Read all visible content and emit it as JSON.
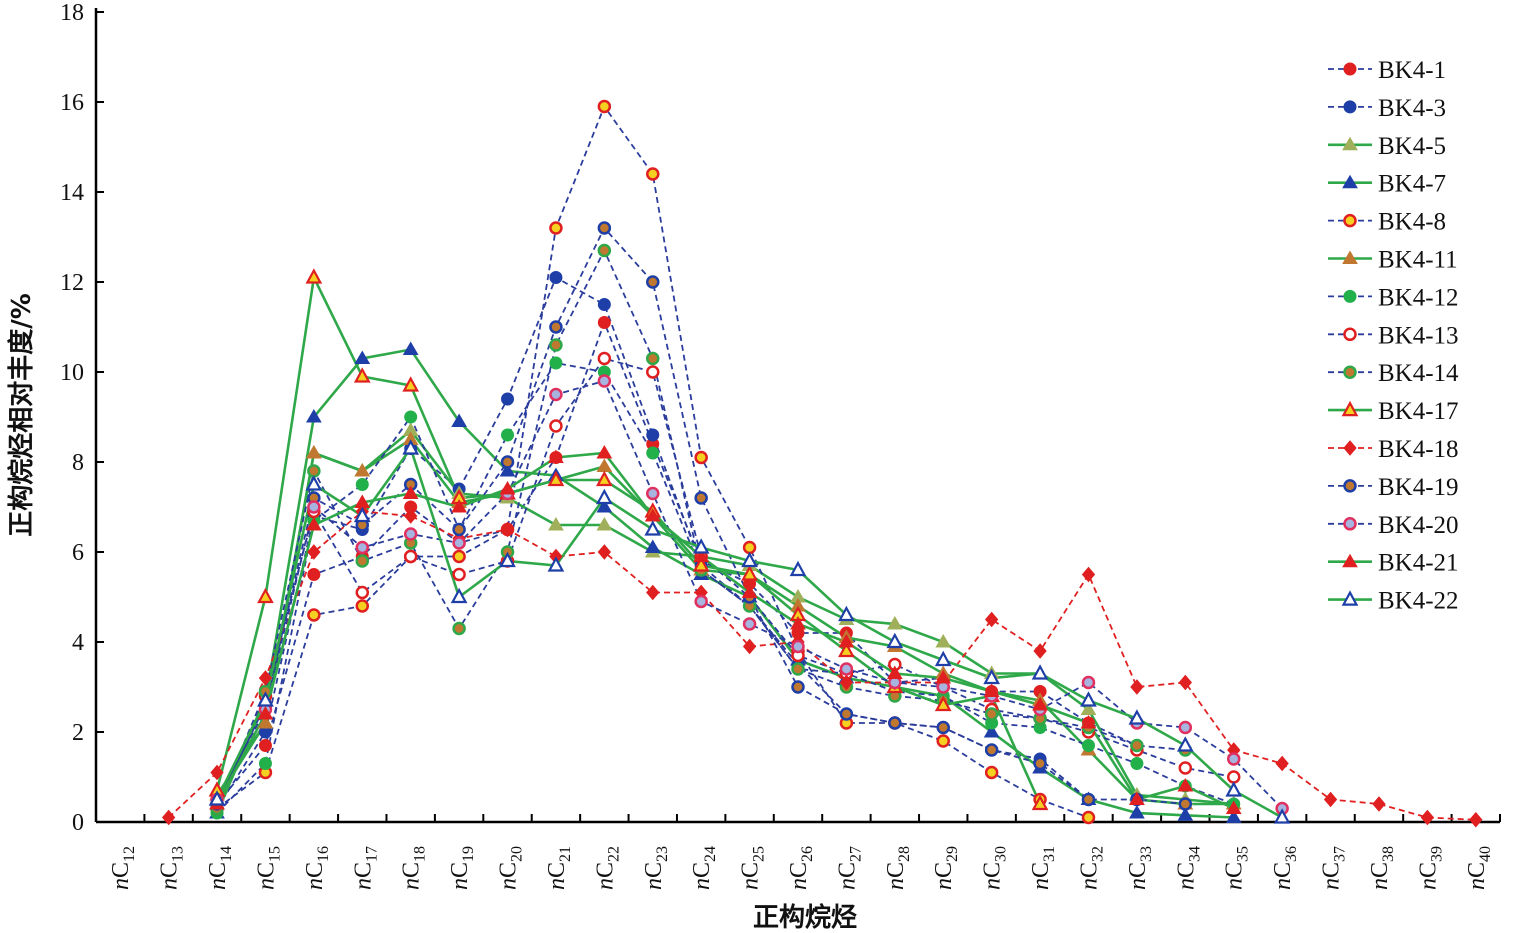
{
  "chart_data": {
    "type": "line",
    "xlabel": "正构烷烃",
    "ylabel": "正构烷烃相对丰度/%",
    "ylim": [
      0,
      18
    ],
    "yticks": [
      0,
      2,
      4,
      6,
      8,
      10,
      12,
      14,
      16,
      18
    ],
    "categories": [
      "nC12",
      "nC13",
      "nC14",
      "nC15",
      "nC16",
      "nC17",
      "nC18",
      "nC19",
      "nC20",
      "nC21",
      "nC22",
      "nC23",
      "nC24",
      "nC25",
      "nC26",
      "nC27",
      "nC28",
      "nC29",
      "nC30",
      "nC31",
      "nC32",
      "nC33",
      "nC34",
      "nC35",
      "nC36",
      "nC37",
      "nC38",
      "nC39",
      "nC40"
    ],
    "category_labels": [
      {
        "prefix": "n",
        "base": "C",
        "sub": "12"
      },
      {
        "prefix": "n",
        "base": "C",
        "sub": "13"
      },
      {
        "prefix": "n",
        "base": "C",
        "sub": "14"
      },
      {
        "prefix": "n",
        "base": "C",
        "sub": "15"
      },
      {
        "prefix": "n",
        "base": "C",
        "sub": "16"
      },
      {
        "prefix": "n",
        "base": "C",
        "sub": "17"
      },
      {
        "prefix": "n",
        "base": "C",
        "sub": "18"
      },
      {
        "prefix": "n",
        "base": "C",
        "sub": "19"
      },
      {
        "prefix": "n",
        "base": "C",
        "sub": "20"
      },
      {
        "prefix": "n",
        "base": "C",
        "sub": "21"
      },
      {
        "prefix": "n",
        "base": "C",
        "sub": "22"
      },
      {
        "prefix": "n",
        "base": "C",
        "sub": "23"
      },
      {
        "prefix": "n",
        "base": "C",
        "sub": "24"
      },
      {
        "prefix": "n",
        "base": "C",
        "sub": "25"
      },
      {
        "prefix": "n",
        "base": "C",
        "sub": "26"
      },
      {
        "prefix": "n",
        "base": "C",
        "sub": "27"
      },
      {
        "prefix": "n",
        "base": "C",
        "sub": "28"
      },
      {
        "prefix": "n",
        "base": "C",
        "sub": "29"
      },
      {
        "prefix": "n",
        "base": "C",
        "sub": "30"
      },
      {
        "prefix": "n",
        "base": "C",
        "sub": "31"
      },
      {
        "prefix": "n",
        "base": "C",
        "sub": "32"
      },
      {
        "prefix": "n",
        "base": "C",
        "sub": "33"
      },
      {
        "prefix": "n",
        "base": "C",
        "sub": "34"
      },
      {
        "prefix": "n",
        "base": "C",
        "sub": "35"
      },
      {
        "prefix": "n",
        "base": "C",
        "sub": "36"
      },
      {
        "prefix": "n",
        "base": "C",
        "sub": "37"
      },
      {
        "prefix": "n",
        "base": "C",
        "sub": "38"
      },
      {
        "prefix": "n",
        "base": "C",
        "sub": "39"
      },
      {
        "prefix": "n",
        "base": "C",
        "sub": "40"
      }
    ],
    "legend_position": "top-right",
    "grid": false,
    "series": [
      {
        "name": "BK4-1",
        "line": "dashed",
        "line_color": "#2b3d9c",
        "marker": "circle",
        "fill": "#e02020",
        "stroke": "#e02020",
        "values": [
          null,
          null,
          0.4,
          1.7,
          5.5,
          5.9,
          7.0,
          6.2,
          6.5,
          8.1,
          11.1,
          8.4,
          5.8,
          5.3,
          4.2,
          4.2,
          3.1,
          3.2,
          2.9,
          2.9,
          2.2,
          1.7,
          null,
          null,
          null,
          null,
          null,
          null,
          null
        ]
      },
      {
        "name": "BK4-3",
        "line": "dashed",
        "line_color": "#2b3d9c",
        "marker": "circle",
        "fill": "#1e3fa8",
        "stroke": "#1e3fa8",
        "values": [
          null,
          null,
          0.3,
          2.0,
          6.8,
          6.5,
          8.3,
          7.4,
          9.4,
          12.1,
          11.5,
          8.6,
          5.7,
          4.8,
          3.5,
          2.4,
          2.2,
          2.1,
          1.6,
          1.4,
          0.5,
          null,
          null,
          null,
          null,
          null,
          null,
          null,
          null
        ]
      },
      {
        "name": "BK4-5",
        "line": "solid",
        "line_color": "#2fa84a",
        "marker": "triangle",
        "fill": "#a0b05a",
        "stroke": "#a0b05a",
        "values": [
          null,
          null,
          0.6,
          2.2,
          8.2,
          7.8,
          8.7,
          7.3,
          7.2,
          6.6,
          6.6,
          6.0,
          5.9,
          5.7,
          5.0,
          4.5,
          4.4,
          4.0,
          3.3,
          3.3,
          2.5,
          0.6,
          0.5,
          0.4,
          null,
          null,
          null,
          null,
          null
        ]
      },
      {
        "name": "BK4-7",
        "line": "solid",
        "line_color": "#2fa84a",
        "marker": "triangle",
        "fill": "#1e3fa8",
        "stroke": "#1e3fa8",
        "values": [
          null,
          null,
          0.2,
          2.7,
          9.0,
          10.3,
          10.5,
          8.9,
          7.8,
          7.7,
          7.0,
          6.1,
          5.5,
          5.0,
          3.6,
          3.2,
          3.0,
          2.8,
          2.0,
          1.2,
          0.5,
          0.2,
          0.15,
          0.1,
          null,
          null,
          null,
          null,
          null
        ]
      },
      {
        "name": "BK4-8",
        "line": "dashed",
        "line_color": "#2b3d9c",
        "marker": "circle-open",
        "fill": "#f5d020",
        "stroke": "#e02020",
        "values": [
          null,
          null,
          0.3,
          1.1,
          4.6,
          4.8,
          5.9,
          5.9,
          6.5,
          13.2,
          15.9,
          14.4,
          8.1,
          6.1,
          3.8,
          2.2,
          2.2,
          1.8,
          1.1,
          0.5,
          0.1,
          null,
          null,
          null,
          null,
          null,
          null,
          null,
          null
        ]
      },
      {
        "name": "BK4-11",
        "line": "solid",
        "line_color": "#2fa84a",
        "marker": "triangle",
        "fill": "#c07830",
        "stroke": "#c07830",
        "values": [
          null,
          null,
          0.5,
          2.2,
          8.2,
          7.8,
          8.5,
          7.1,
          7.3,
          7.6,
          7.9,
          6.8,
          5.6,
          5.5,
          4.8,
          4.1,
          3.9,
          3.3,
          2.9,
          2.7,
          1.6,
          0.5,
          0.4,
          0.4,
          null,
          null,
          null,
          null,
          null
        ]
      },
      {
        "name": "BK4-12",
        "line": "dashed",
        "line_color": "#2b3d9c",
        "marker": "circle",
        "fill": "#22b04a",
        "stroke": "#22b04a",
        "values": [
          null,
          null,
          0.2,
          1.3,
          6.7,
          7.5,
          9.0,
          6.5,
          8.6,
          10.2,
          10.0,
          8.2,
          5.6,
          4.8,
          3.4,
          3.3,
          2.9,
          2.8,
          2.2,
          2.1,
          1.7,
          1.3,
          0.8,
          0.4,
          null,
          null,
          null,
          null,
          null
        ]
      },
      {
        "name": "BK4-13",
        "line": "dashed",
        "line_color": "#2b3d9c",
        "marker": "circle-open",
        "fill": "#ffffff",
        "stroke": "#e02020",
        "values": [
          null,
          null,
          0.3,
          2.8,
          6.9,
          5.1,
          5.9,
          5.5,
          5.8,
          8.8,
          10.3,
          10.0,
          5.9,
          5.0,
          3.7,
          3.3,
          3.5,
          3.0,
          2.5,
          2.3,
          2.0,
          1.6,
          1.2,
          1.0,
          null,
          null,
          null,
          null,
          null
        ]
      },
      {
        "name": "BK4-14",
        "line": "dashed",
        "line_color": "#2b3d9c",
        "marker": "circle-open",
        "fill": "#c07830",
        "stroke": "#2fa84a",
        "values": [
          null,
          null,
          0.3,
          2.9,
          7.8,
          5.8,
          6.2,
          4.3,
          6.0,
          10.6,
          12.7,
          10.3,
          5.6,
          4.8,
          3.4,
          3.0,
          2.8,
          2.7,
          2.4,
          2.3,
          2.1,
          1.7,
          1.6,
          null,
          null,
          null,
          null,
          null,
          null
        ]
      },
      {
        "name": "BK4-17",
        "line": "solid",
        "line_color": "#2fa84a",
        "marker": "triangle-open",
        "fill": "#f5d020",
        "stroke": "#e02020",
        "values": [
          null,
          null,
          0.7,
          5.0,
          12.1,
          9.9,
          9.7,
          7.2,
          7.3,
          7.6,
          7.6,
          6.9,
          5.7,
          5.5,
          4.6,
          3.8,
          3.0,
          2.6,
          2.8,
          0.4,
          null,
          null,
          null,
          null,
          null,
          null,
          null,
          null,
          null
        ]
      },
      {
        "name": "BK4-18",
        "line": "dashed",
        "line_color": "#e02020",
        "marker": "diamond",
        "fill": "#e02020",
        "stroke": "#e02020",
        "values": [
          null,
          0.1,
          1.1,
          3.2,
          6.0,
          6.9,
          6.8,
          6.3,
          6.5,
          5.9,
          6.0,
          5.1,
          5.1,
          3.9,
          4.0,
          3.1,
          3.1,
          3.1,
          4.5,
          3.8,
          5.5,
          3.0,
          3.1,
          1.6,
          1.3,
          0.5,
          0.4,
          0.1,
          0.05
        ]
      },
      {
        "name": "BK4-19",
        "line": "dashed",
        "line_color": "#2b3d9c",
        "marker": "circle-open",
        "fill": "#c07830",
        "stroke": "#1e3fa8",
        "values": [
          null,
          null,
          0.4,
          2.6,
          7.2,
          6.6,
          7.5,
          6.5,
          8.0,
          11.0,
          13.2,
          12.0,
          7.2,
          5.0,
          3.0,
          2.4,
          2.2,
          2.1,
          1.6,
          1.3,
          0.5,
          0.5,
          0.4,
          null,
          null,
          null,
          null,
          null,
          null
        ]
      },
      {
        "name": "BK4-20",
        "line": "dashed",
        "line_color": "#2b3d9c",
        "marker": "circle-open",
        "fill": "#a8b4e0",
        "stroke": "#e03060",
        "values": [
          null,
          null,
          0.5,
          2.5,
          7.0,
          6.1,
          6.4,
          6.2,
          7.3,
          9.5,
          9.8,
          7.3,
          4.9,
          4.4,
          3.9,
          3.4,
          3.1,
          3.0,
          2.8,
          2.5,
          3.1,
          2.2,
          2.1,
          1.4,
          0.3,
          null,
          null,
          null,
          null
        ]
      },
      {
        "name": "BK4-21",
        "line": "solid",
        "line_color": "#2fa84a",
        "marker": "triangle",
        "fill": "#e02020",
        "stroke": "#e02020",
        "values": [
          null,
          null,
          0.4,
          2.4,
          6.6,
          7.1,
          7.3,
          7.0,
          7.4,
          8.1,
          8.2,
          6.8,
          5.9,
          5.1,
          4.4,
          4.0,
          3.3,
          3.2,
          2.9,
          2.6,
          2.2,
          0.5,
          0.8,
          0.3,
          null,
          null,
          null,
          null,
          null
        ]
      },
      {
        "name": "BK4-22",
        "line": "solid",
        "line_color": "#2fa84a",
        "marker": "triangle-open",
        "fill": "#ffffff",
        "stroke": "#1e3fa8",
        "values": [
          null,
          null,
          0.5,
          2.7,
          7.5,
          6.8,
          8.3,
          5.0,
          5.8,
          5.7,
          7.2,
          6.5,
          6.1,
          5.8,
          5.6,
          4.6,
          4.0,
          3.6,
          3.2,
          3.3,
          2.7,
          2.3,
          1.7,
          0.7,
          0.1,
          null,
          null,
          null,
          null
        ]
      }
    ]
  }
}
